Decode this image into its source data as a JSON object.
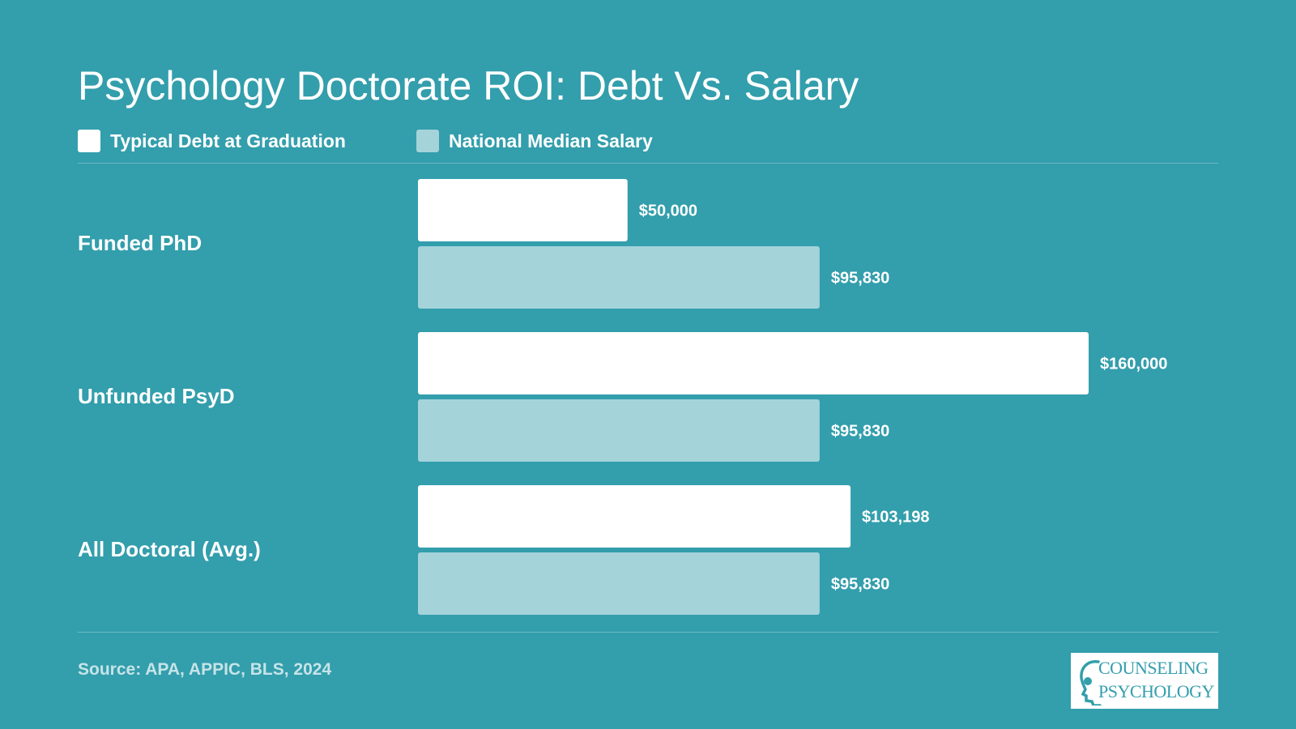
{
  "colors": {
    "background": "#339eac",
    "debt_bar": "#ffffff",
    "salary_bar": "#a4d3da"
  },
  "source": "Source: APA, APPIC, BLS, 2024",
  "logo": {
    "line1": "COUNSELING",
    "line2": "PSYCHOLOGY",
    "icon": "head-profile-icon"
  },
  "chart_data": {
    "type": "bar",
    "orientation": "horizontal",
    "title": "Psychology Doctorate ROI: Debt Vs. Salary",
    "categories": [
      "Funded PhD",
      "Unfunded PsyD",
      "All Doctoral (Avg.)"
    ],
    "series": [
      {
        "name": "Typical Debt at Graduation",
        "values": [
          50000,
          160000,
          103198
        ],
        "labels": [
          "$50,000",
          "$160,000",
          "$103,198"
        ],
        "color": "#ffffff"
      },
      {
        "name": "National Median Salary",
        "values": [
          95830,
          95830,
          95830
        ],
        "labels": [
          "$95,830",
          "$95,830",
          "$95,830"
        ],
        "color": "#a4d3da"
      }
    ],
    "xlim": [
      0,
      160000
    ],
    "legend": "top-left",
    "grid": false
  }
}
